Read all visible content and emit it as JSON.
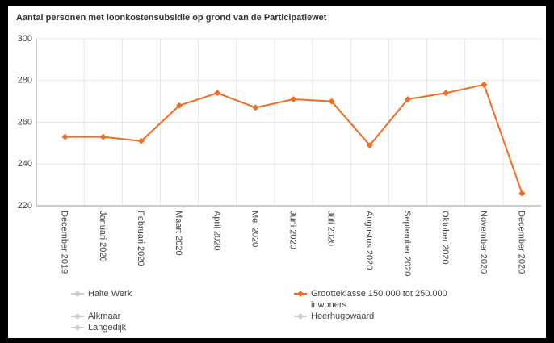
{
  "chart_data": {
    "type": "line",
    "title": "Aantal personen met loonkostensubsidie op grond van de Participatiewet",
    "categories": [
      "December 2019",
      "Januari 2020",
      "Februari 2020",
      "Maart 2020",
      "April 2020",
      "Mei 2020",
      "Juni 2020",
      "Juli 2020",
      "Augustus 2020",
      "September 2020",
      "Oktober 2020",
      "November 2020",
      "December 2020"
    ],
    "series": [
      {
        "name": "Grootteklasse 150.000 tot 250.000 inwoners",
        "color": "#f26b21",
        "values": [
          253,
          253,
          251,
          268,
          274,
          267,
          271,
          270,
          249,
          271,
          274,
          278,
          226
        ]
      }
    ],
    "hidden_series": [
      {
        "name": "Halte Werk",
        "color": "#cccccc"
      },
      {
        "name": "Alkmaar",
        "color": "#cccccc"
      },
      {
        "name": "Langedijk",
        "color": "#cccccc"
      },
      {
        "name": "Heerhugowaard",
        "color": "#cccccc"
      }
    ],
    "ylim": [
      220,
      300
    ],
    "yticks": [
      220,
      240,
      260,
      280,
      300
    ],
    "grid": true
  }
}
